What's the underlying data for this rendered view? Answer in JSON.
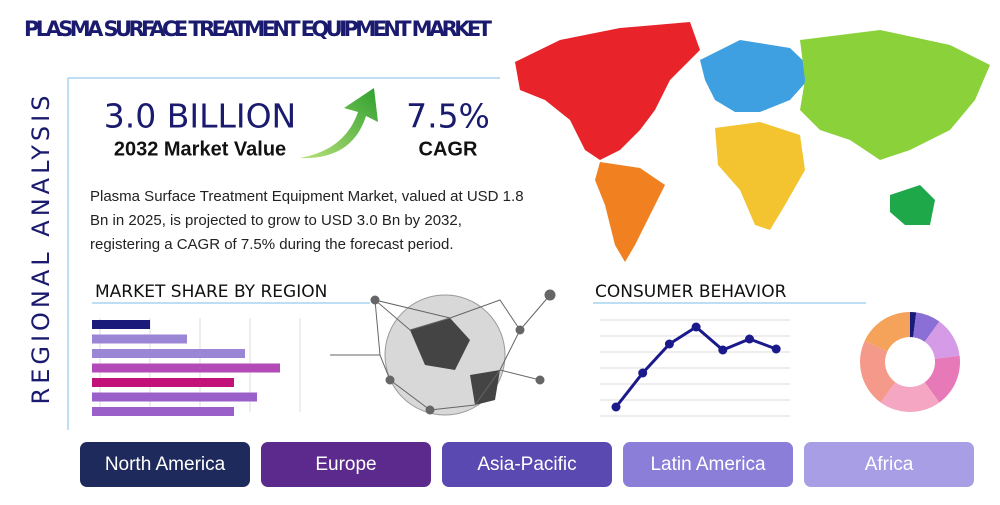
{
  "header": {
    "title": "PLASMA SURFACE TREATMENT EQUIPMENT MARKET",
    "side_label": "REGIONAL ANALYSIS"
  },
  "stats": [
    {
      "value": "3.0 BILLION",
      "label": "2032 Market Value"
    },
    {
      "value": "7.5%",
      "label": "CAGR"
    }
  ],
  "description": [
    "Plasma Surface Treatment Equipment Market, valued at USD 1.8",
    "Bn in 2025, is projected to grow to USD 3.0 Bn by 2032,",
    "registering a CAGR of 7.5% during the forecast period."
  ],
  "market_share": {
    "title": "MARKET SHARE BY REGION",
    "xlim": [
      0,
      220
    ],
    "values": [
      58,
      95,
      153,
      188,
      142,
      165,
      142
    ],
    "colors": [
      "#1a1a7a",
      "#9b86d6",
      "#9b86d6",
      "#b24bb8",
      "#c2127a",
      "#9a5fc8",
      "#9a5fc8"
    ]
  },
  "consumer_behavior": {
    "title": "CONSUMER BEHAVIOR",
    "ylim": [
      0,
      100
    ],
    "color": "#1a1a8c",
    "values": [
      13,
      47,
      76,
      93,
      70,
      81,
      71
    ],
    "donut": {
      "values": [
        2,
        8,
        13,
        17,
        20,
        22,
        18
      ],
      "colors": [
        "#1a1a7a",
        "#8a6fd6",
        "#d59be6",
        "#e879b8",
        "#f4a6c2",
        "#f59a8a",
        "#f5a25a"
      ]
    }
  },
  "regions": [
    "North America",
    "Europe",
    "Asia-Pacific",
    "Latin America",
    "Africa"
  ]
}
